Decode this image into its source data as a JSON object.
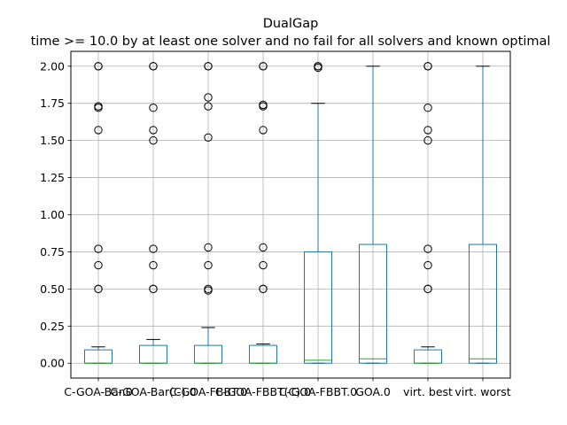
{
  "chart_data": {
    "type": "box",
    "title": "DualGap",
    "subtitle": "time >= 10.0 by at least one solver and no fail for all solvers and known optimal",
    "xlabel": "",
    "ylabel": "",
    "ylim": [
      -0.1,
      2.1
    ],
    "yticks": [
      "0.00",
      "0.25",
      "0.50",
      "0.75",
      "1.00",
      "1.25",
      "1.50",
      "1.75",
      "2.00"
    ],
    "ytick_values": [
      0,
      0.25,
      0.5,
      0.75,
      1.0,
      1.25,
      1.5,
      1.75,
      2.0
    ],
    "grid": true,
    "categories": [
      "C-GOA-Bar.0",
      "C-GOA-Bar(C).0",
      "C-GOA-FBBT.0",
      "C-GOA-FBBT(C).0",
      "C-GOA-FBBT.0",
      "GOA.0",
      "virt. best",
      "virt. worst"
    ],
    "boxes": [
      {
        "q1": 0.0,
        "median": 0.0,
        "q3": 0.09,
        "whisker_low": 0.0,
        "whisker_high": 0.11,
        "outliers": [
          0.5,
          0.5,
          0.66,
          0.77,
          1.57,
          1.72,
          1.73,
          2.0,
          2.0
        ]
      },
      {
        "q1": 0.0,
        "median": 0.0,
        "q3": 0.12,
        "whisker_low": 0.0,
        "whisker_high": 0.16,
        "outliers": [
          0.5,
          0.5,
          0.66,
          0.77,
          1.5,
          1.57,
          1.72,
          2.0,
          2.0
        ]
      },
      {
        "q1": 0.0,
        "median": 0.0,
        "q3": 0.12,
        "whisker_low": 0.0,
        "whisker_high": 0.24,
        "outliers": [
          0.49,
          0.5,
          0.66,
          0.78,
          1.52,
          1.73,
          1.79,
          2.0,
          2.0
        ]
      },
      {
        "q1": 0.0,
        "median": 0.0,
        "q3": 0.12,
        "whisker_low": 0.0,
        "whisker_high": 0.13,
        "outliers": [
          0.5,
          0.5,
          0.66,
          0.78,
          1.57,
          1.73,
          1.74,
          2.0,
          2.0
        ]
      },
      {
        "q1": 0.0,
        "median": 0.02,
        "q3": 0.75,
        "whisker_low": 0.0,
        "whisker_high": 1.75,
        "outliers": [
          1.99,
          2.0,
          2.0
        ]
      },
      {
        "q1": 0.0,
        "median": 0.03,
        "q3": 0.8,
        "whisker_low": 0.0,
        "whisker_high": 2.0,
        "outliers": []
      },
      {
        "q1": 0.0,
        "median": 0.0,
        "q3": 0.09,
        "whisker_low": 0.0,
        "whisker_high": 0.11,
        "outliers": [
          0.5,
          0.5,
          0.66,
          0.77,
          1.5,
          1.57,
          1.72,
          2.0,
          2.0
        ]
      },
      {
        "q1": 0.0,
        "median": 0.03,
        "q3": 0.8,
        "whisker_low": 0.0,
        "whisker_high": 2.0,
        "outliers": []
      }
    ],
    "colors": {
      "box": "#1f77b4",
      "median": "#2ca02c",
      "whisker": "#1f77b4",
      "cap": "#000000",
      "grid": "#b0b0b0",
      "axis": "#000000"
    }
  }
}
